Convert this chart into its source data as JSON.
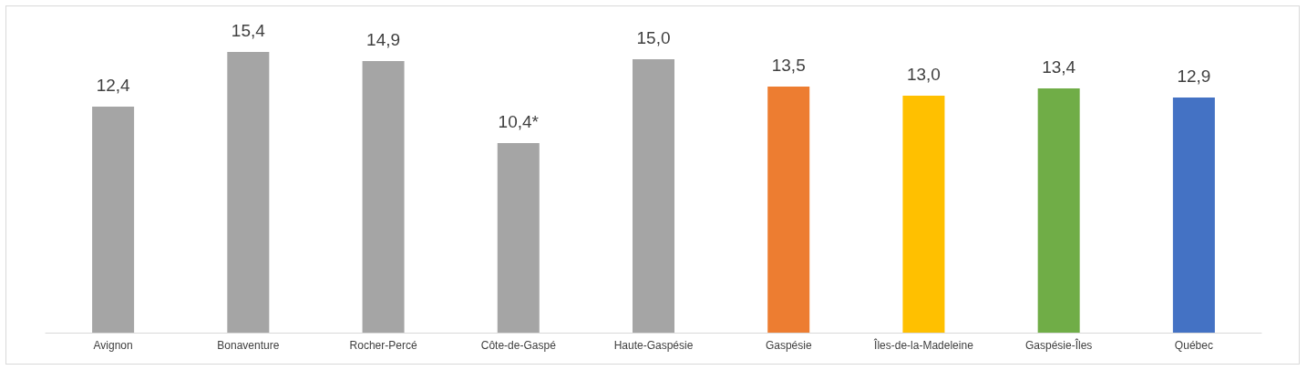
{
  "chart_data": {
    "type": "bar",
    "categories": [
      "Avignon",
      "Bonaventure",
      "Rocher-Percé",
      "Côte-de-Gaspé",
      "Haute-Gaspésie",
      "Gaspésie",
      "Îles-de-la-Madeleine",
      "Gaspésie-Îles",
      "Québec"
    ],
    "values": [
      12.4,
      15.4,
      14.9,
      10.4,
      15.0,
      13.5,
      13.0,
      13.4,
      12.9
    ],
    "colors": [
      "#a5a5a5",
      "#a5a5a5",
      "#a5a5a5",
      "#a5a5a5",
      "#a5a5a5",
      "#ed7d31",
      "#ffc000",
      "#70ad47",
      "#4472c4"
    ],
    "value_labels": [
      "12,4",
      "15,4",
      "14,9",
      "10,4*",
      "15,0",
      "13,5",
      "13,0",
      "13,4",
      "12,9"
    ],
    "orientation": "vertical"
  }
}
